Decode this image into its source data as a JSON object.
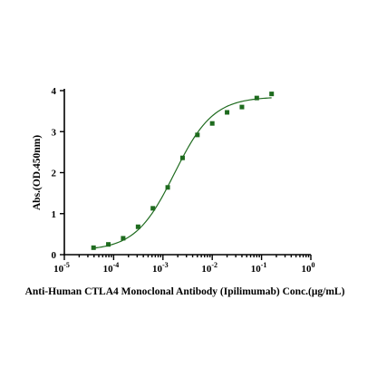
{
  "chart_data": {
    "type": "scatter",
    "title": "",
    "xlabel": "Anti-Human CTLA4 Monoclonal Antibody (Ipilimumab) Conc.(μg/mL)",
    "ylabel": "Abs.(OD.450nm)",
    "x_scale": "log",
    "xlim": [
      1e-05,
      1
    ],
    "ylim": [
      0,
      4
    ],
    "x_ticks": [
      {
        "value": 1e-05,
        "base": "10",
        "exp": "-5"
      },
      {
        "value": 0.0001,
        "base": "10",
        "exp": "-4"
      },
      {
        "value": 0.001,
        "base": "10",
        "exp": "-3"
      },
      {
        "value": 0.01,
        "base": "10",
        "exp": "-2"
      },
      {
        "value": 0.1,
        "base": "10",
        "exp": "-1"
      },
      {
        "value": 1,
        "base": "10",
        "exp": "0"
      }
    ],
    "y_ticks": [
      0,
      1,
      2,
      3,
      4
    ],
    "grid": false,
    "series": [
      {
        "color": "#1e6b1e",
        "points": [
          {
            "x": 3.91e-05,
            "y": 0.17
          },
          {
            "x": 7.81e-05,
            "y": 0.25
          },
          {
            "x": 0.000156,
            "y": 0.4
          },
          {
            "x": 0.000313,
            "y": 0.68
          },
          {
            "x": 0.000625,
            "y": 1.13
          },
          {
            "x": 0.00125,
            "y": 1.64
          },
          {
            "x": 0.0025,
            "y": 2.36
          },
          {
            "x": 0.005,
            "y": 2.92
          },
          {
            "x": 0.01,
            "y": 3.2
          },
          {
            "x": 0.02,
            "y": 3.47
          },
          {
            "x": 0.04,
            "y": 3.6
          },
          {
            "x": 0.08,
            "y": 3.82
          },
          {
            "x": 0.16,
            "y": 3.92
          }
        ],
        "fit": {
          "model": "4PL",
          "bottom": 0.1,
          "top": 3.85,
          "ec50": 0.0017,
          "hill": 1.1
        }
      }
    ]
  }
}
